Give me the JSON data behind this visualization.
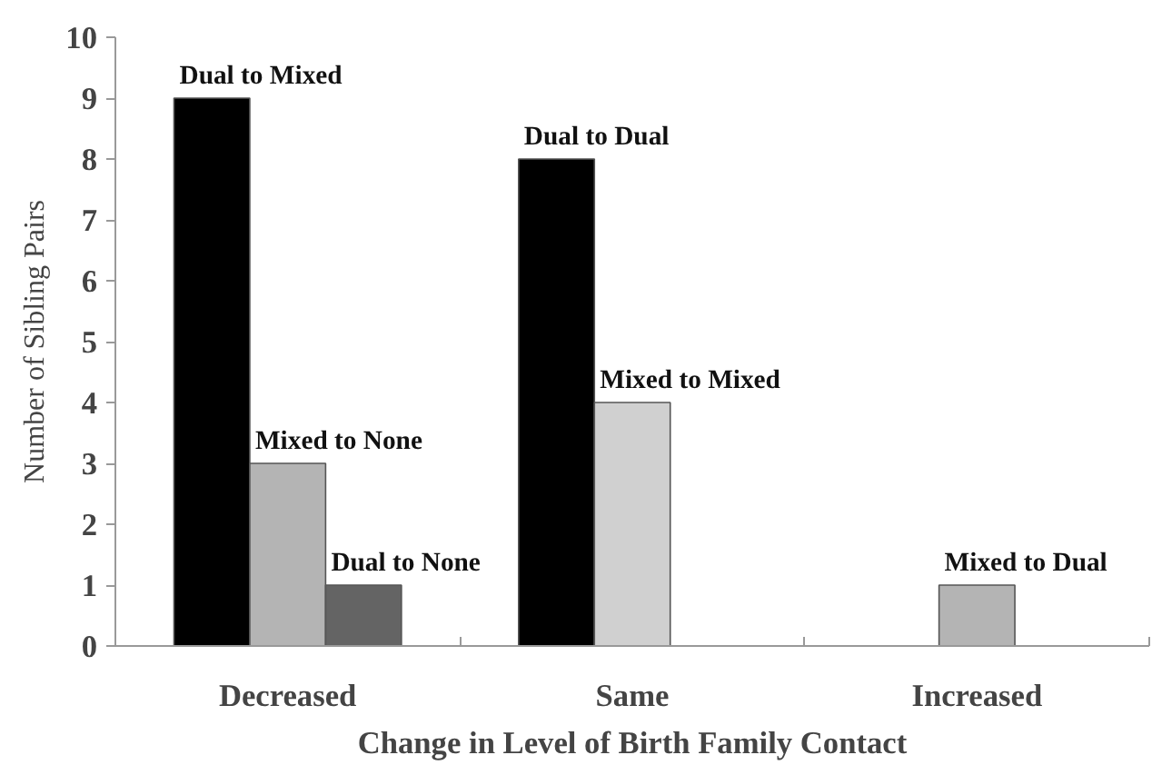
{
  "chart_data": {
    "type": "bar",
    "xlabel": "Change in Level of Birth Family Contact",
    "ylabel": "Number of Sibling Pairs",
    "categories": [
      "Decreased",
      "Same",
      "Increased"
    ],
    "series": [
      {
        "values": [
          9,
          8,
          null
        ],
        "colors": [
          "#000000",
          "#000000",
          "#000000"
        ]
      },
      {
        "values": [
          3,
          4,
          1
        ],
        "colors": [
          "#b4b4b4",
          "#d0d0d0",
          "#b4b4b4"
        ]
      },
      {
        "values": [
          1,
          null,
          null
        ],
        "colors": [
          "#646464",
          "#646464",
          "#646464"
        ]
      }
    ],
    "ylim": [
      0,
      10
    ],
    "yticks": [
      0,
      1,
      2,
      3,
      4,
      5,
      6,
      7,
      8,
      9,
      10
    ],
    "grid": false,
    "annotations": [
      "Dual to Mixed",
      "Mixed to None",
      "Dual to None",
      "Dual to Dual",
      "Mixed to Mixed",
      "Mixed to Dual"
    ]
  }
}
